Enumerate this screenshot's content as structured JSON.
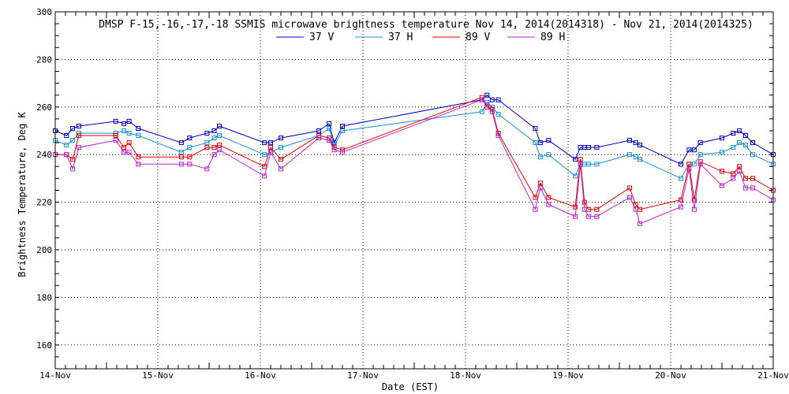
{
  "chart_data": {
    "type": "line",
    "title": "DMSP F-15,-16,-17,-18 SSMIS microwave brightness temperature Nov 14, 2014(2014318) - Nov 21, 2014(2014325)",
    "xlabel": "Date (EST)",
    "ylabel": "Brightness Temperature, Deg K",
    "xlim": [
      0,
      7
    ],
    "ylim": [
      150,
      300
    ],
    "x_ticks": [
      {
        "value": 0,
        "label": "14-Nov"
      },
      {
        "value": 1,
        "label": "15-Nov"
      },
      {
        "value": 2,
        "label": "16-Nov"
      },
      {
        "value": 3,
        "label": "17-Nov"
      },
      {
        "value": 4,
        "label": "18-Nov"
      },
      {
        "value": 5,
        "label": "19-Nov"
      },
      {
        "value": 6,
        "label": "20-Nov"
      },
      {
        "value": 7,
        "label": "21-Nov"
      }
    ],
    "y_ticks": [
      160,
      180,
      200,
      220,
      240,
      260,
      280,
      300
    ],
    "grid": true,
    "legend_position": "top-center",
    "x_unit_note": "x values are days from 14-Nov",
    "series": [
      {
        "name": "37 V",
        "color": "#0000bb",
        "x": [
          0.0,
          0.11,
          0.17,
          0.23,
          0.59,
          0.67,
          0.72,
          0.81,
          1.23,
          1.31,
          1.48,
          1.55,
          1.6,
          2.04,
          2.1,
          2.2,
          2.57,
          2.67,
          2.72,
          2.8,
          4.16,
          4.21,
          4.26,
          4.32,
          4.68,
          4.73,
          4.81,
          5.07,
          5.12,
          5.16,
          5.2,
          5.28,
          5.6,
          5.66,
          5.7,
          6.1,
          6.18,
          6.23,
          6.29,
          6.5,
          6.61,
          6.67,
          6.73,
          6.8,
          7.0
        ],
        "y": [
          250,
          248,
          251,
          252,
          254,
          253,
          254,
          251,
          245,
          247,
          249,
          250,
          252,
          245,
          245,
          247,
          250,
          253,
          245,
          252,
          263,
          265,
          263,
          263,
          251,
          245,
          246,
          238,
          243,
          243,
          243,
          243,
          246,
          245,
          244,
          236,
          242,
          242,
          245,
          247,
          249,
          250,
          248,
          245,
          240
        ]
      },
      {
        "name": "37 H",
        "color": "#1a8ed6",
        "x": [
          0.0,
          0.11,
          0.17,
          0.23,
          0.59,
          0.67,
          0.72,
          0.81,
          1.23,
          1.31,
          1.48,
          1.55,
          1.6,
          2.04,
          2.1,
          2.2,
          2.57,
          2.67,
          2.72,
          2.8,
          4.16,
          4.21,
          4.26,
          4.32,
          4.68,
          4.73,
          4.81,
          5.07,
          5.12,
          5.16,
          5.2,
          5.28,
          5.6,
          5.66,
          5.7,
          6.1,
          6.18,
          6.23,
          6.29,
          6.5,
          6.61,
          6.67,
          6.73,
          6.8,
          7.0
        ],
        "y": [
          246,
          244,
          246,
          249,
          249,
          250,
          249,
          248,
          241,
          243,
          245,
          247,
          248,
          240,
          241,
          243,
          248,
          251,
          244,
          250,
          258,
          262,
          260,
          257,
          245,
          239,
          240,
          231,
          236,
          236,
          236,
          236,
          240,
          239,
          238,
          230,
          236,
          236,
          240,
          241,
          243,
          245,
          244,
          240,
          236
        ]
      },
      {
        "name": "89 V",
        "color": "#dd0000",
        "x": [
          0.0,
          0.11,
          0.17,
          0.23,
          0.59,
          0.67,
          0.72,
          0.81,
          1.23,
          1.31,
          1.48,
          1.55,
          1.6,
          2.04,
          2.1,
          2.2,
          2.57,
          2.67,
          2.72,
          2.8,
          4.16,
          4.21,
          4.26,
          4.32,
          4.68,
          4.73,
          4.81,
          5.07,
          5.12,
          5.16,
          5.2,
          5.28,
          5.6,
          5.66,
          5.7,
          6.1,
          6.18,
          6.23,
          6.29,
          6.5,
          6.61,
          6.67,
          6.73,
          6.8,
          7.0
        ],
        "y": [
          240,
          240,
          238,
          248,
          248,
          243,
          245,
          239,
          239,
          239,
          243,
          243,
          244,
          235,
          243,
          238,
          248,
          247,
          243,
          242,
          264,
          260,
          259,
          249,
          222,
          228,
          222,
          218,
          238,
          220,
          217,
          217,
          226,
          219,
          217,
          221,
          236,
          221,
          237,
          233,
          232,
          235,
          230,
          230,
          225
        ]
      },
      {
        "name": "89 H",
        "color": "#bb22cc",
        "x": [
          0.0,
          0.11,
          0.17,
          0.23,
          0.59,
          0.67,
          0.72,
          0.81,
          1.23,
          1.31,
          1.48,
          1.55,
          1.6,
          2.04,
          2.1,
          2.2,
          2.57,
          2.67,
          2.72,
          2.8,
          4.16,
          4.21,
          4.26,
          4.32,
          4.68,
          4.73,
          4.81,
          5.07,
          5.12,
          5.16,
          5.2,
          5.28,
          5.6,
          5.66,
          5.7,
          6.1,
          6.18,
          6.23,
          6.29,
          6.5,
          6.61,
          6.67,
          6.73,
          6.8,
          7.0
        ],
        "y": [
          240,
          240,
          234,
          243,
          246,
          241,
          241,
          236,
          236,
          236,
          234,
          240,
          242,
          231,
          241,
          234,
          247,
          246,
          242,
          241,
          263,
          261,
          258,
          248,
          217,
          226,
          219,
          214,
          236,
          217,
          214,
          214,
          222,
          217,
          211,
          218,
          234,
          217,
          236,
          227,
          230,
          233,
          226,
          226,
          221
        ]
      }
    ]
  }
}
